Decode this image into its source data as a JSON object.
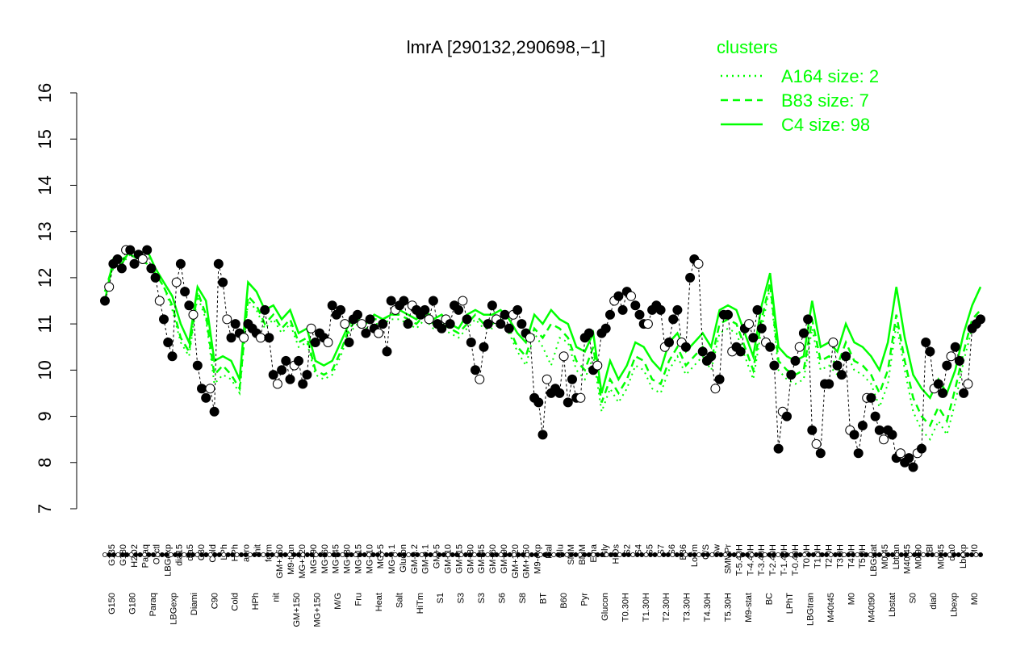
{
  "chart_data": {
    "type": "line",
    "title": "lmrA [290132,290698,−1]",
    "xlabel": "",
    "ylabel": "",
    "ylim": [
      7,
      16
    ],
    "yticks": [
      7,
      8,
      9,
      10,
      11,
      12,
      13,
      14,
      15,
      16
    ],
    "grid": false,
    "legend": {
      "title": "clusters",
      "position": "top-right",
      "entries": [
        {
          "label": "A164 size: 2",
          "style": "dotted"
        },
        {
          "label": "B83 size: 7",
          "style": "dashed"
        },
        {
          "label": "C4 size: 98",
          "style": "solid"
        }
      ]
    },
    "x_labels_top": [
      "G135",
      "G180",
      "H2O2",
      "Paraq",
      "Oxctl",
      "LBGexp",
      "dia15",
      "dia5",
      "C30",
      "Cold",
      "LPh",
      "HPh",
      "aero",
      "nit",
      "ferm",
      "GM+150",
      "M9-tran",
      "MG+120",
      "MG+90",
      "MG+60",
      "MG+45",
      "MG+30",
      "MG+15",
      "MG+10",
      "MG+5",
      "MG-0.1",
      "Glucon",
      "GM-0.2",
      "GM-0.1",
      "GM+5",
      "GM+10",
      "GM+15",
      "GM+30",
      "GM+45",
      "GM+60",
      "GM+90",
      "GM+120",
      "GM+150",
      "M9-exp",
      "Mal",
      "Glu",
      "SMM",
      "BMM",
      "Etha",
      "Gly",
      "HiOs",
      "S2",
      "S4",
      "S5",
      "S7",
      "S6",
      "B36",
      "LoTm",
      "G/S",
      "Sw",
      "SMMPr",
      "T-5.40H",
      "T-4.40H",
      "T-3.40H",
      "T-2.40H",
      "T-1.40H",
      "T-0.40H",
      "T0.0H",
      "T1.0H",
      "T2.0H",
      "T3.0H",
      "T4.0H",
      "T5.0H",
      "LBGstat",
      "M0t45",
      "Lbtran",
      "M40t45",
      "M0t90",
      "Bl",
      "M0t45",
      "dia0",
      "Lbexp",
      "M0"
    ],
    "x_labels_bottom": [
      "G150",
      "G180",
      "Paraq",
      "LBGexp",
      "Diami",
      "C90",
      "Cold",
      "HPh",
      "nit",
      "GM+150",
      "MG+150",
      "M/G",
      "Fru",
      "Heat",
      "Salt",
      "HiTm",
      "S1",
      "S3",
      "S3",
      "S6",
      "S8",
      "BT",
      "B60",
      "Pyr",
      "Glucon",
      "T0.30H",
      "T1.30H",
      "T2.30H",
      "T3.30H",
      "T4.30H",
      "T5.30H",
      "M9-stat",
      "BC",
      "LPhT",
      "LBGtran",
      "M40t45",
      "M0",
      "M40t90",
      "Lbstat",
      "S0",
      "dia0",
      "Lbexp",
      "M0"
    ],
    "series": [
      {
        "name": "C4 size: 98",
        "color": "#00ff00",
        "style": "solid",
        "values": [
          11.5,
          12.4,
          12.3,
          12.6,
          12.5,
          12.6,
          12.2,
          11.9,
          11.6,
          11.0,
          10.6,
          11.8,
          11.5,
          10.2,
          10.3,
          10.2,
          9.8,
          11.9,
          11.7,
          11.3,
          11.4,
          11.1,
          11.3,
          10.8,
          10.9,
          10.2,
          10.1,
          10.2,
          10.6,
          11.0,
          11.1,
          11.0,
          11.2,
          11.1,
          11.2,
          11.3,
          11.2,
          11.1,
          11.3,
          11.1,
          11.2,
          11.0,
          10.9,
          11.2,
          11.3,
          11.2,
          11.2,
          11.3,
          11.1,
          10.8,
          10.6,
          11.2,
          11.0,
          11.3,
          11.1,
          11.0,
          10.5,
          10.4,
          10.8,
          9.5,
          10.2,
          9.8,
          10.1,
          10.6,
          10.5,
          10.2,
          10.0,
          10.6,
          10.8,
          10.4,
          10.6,
          10.8,
          10.5,
          11.3,
          11.4,
          11.3,
          10.8,
          10.3,
          11.4,
          12.1,
          10.5,
          10.3,
          10.2,
          10.3,
          11.5,
          10.5,
          10.6,
          10.4,
          11.0,
          10.6,
          10.5,
          10.3,
          10.0,
          10.6,
          11.8,
          10.7,
          9.9,
          9.6,
          9.4,
          9.8,
          9.5,
          10.0,
          10.8,
          11.4,
          11.8
        ]
      },
      {
        "name": "B83 size: 7",
        "color": "#00ff00",
        "style": "dashed",
        "values": [
          11.7,
          12.3,
          12.4,
          12.5,
          12.4,
          12.3,
          12.1,
          11.8,
          11.4,
          10.7,
          10.4,
          11.7,
          11.2,
          9.9,
          10.1,
          9.9,
          9.6,
          11.6,
          11.4,
          11.0,
          11.2,
          10.9,
          11.1,
          10.6,
          10.7,
          10.0,
          9.9,
          10.0,
          10.4,
          10.9,
          11.1,
          11.0,
          11.1,
          11.1,
          11.2,
          11.2,
          11.1,
          11.0,
          11.2,
          11.0,
          11.0,
          10.9,
          10.8,
          11.0,
          11.2,
          11.0,
          11.0,
          11.1,
          10.9,
          10.5,
          10.3,
          10.9,
          10.7,
          11.0,
          10.9,
          10.7,
          10.2,
          10.0,
          10.5,
          9.3,
          9.8,
          9.5,
          9.8,
          10.3,
          10.2,
          9.8,
          9.7,
          10.2,
          10.5,
          10.1,
          10.3,
          10.5,
          10.2,
          11.0,
          11.1,
          11.0,
          10.5,
          10.0,
          11.1,
          11.9,
          10.2,
          10.0,
          9.9,
          10.0,
          11.1,
          10.2,
          10.3,
          10.1,
          10.6,
          10.2,
          10.1,
          9.9,
          9.5,
          10.0,
          11.2,
          10.2,
          9.4,
          9.0,
          8.8,
          9.2,
          8.9,
          9.6,
          10.4,
          11.1,
          11.3
        ]
      },
      {
        "name": "A164 size: 2",
        "color": "#00ff00",
        "style": "dotted",
        "values": [
          11.7,
          12.2,
          12.3,
          12.5,
          12.4,
          12.3,
          12.1,
          11.8,
          11.3,
          10.6,
          10.3,
          11.6,
          11.1,
          9.7,
          9.9,
          9.8,
          9.5,
          11.5,
          11.3,
          10.9,
          11.1,
          10.8,
          11.0,
          10.5,
          10.6,
          9.9,
          9.8,
          9.9,
          10.3,
          10.8,
          11.0,
          10.9,
          11.0,
          11.0,
          11.1,
          11.1,
          11.0,
          10.9,
          11.1,
          10.9,
          10.9,
          10.8,
          10.7,
          10.9,
          11.1,
          10.9,
          10.9,
          11.0,
          10.8,
          10.4,
          10.1,
          10.8,
          10.5,
          10.1,
          10.7,
          10.6,
          10.0,
          9.8,
          10.3,
          9.1,
          9.6,
          9.3,
          9.6,
          10.1,
          10.0,
          9.6,
          9.5,
          10.0,
          10.3,
          9.9,
          10.1,
          10.3,
          10.0,
          10.8,
          10.9,
          10.8,
          10.3,
          9.8,
          10.9,
          11.8,
          10.0,
          9.8,
          9.7,
          9.8,
          10.9,
          10.0,
          10.1,
          9.9,
          10.4,
          10.0,
          9.9,
          9.7,
          9.2,
          9.7,
          11.0,
          10.0,
          9.1,
          8.7,
          8.5,
          8.9,
          8.6,
          9.3,
          10.2,
          10.9,
          11.1
        ]
      },
      {
        "name": "",
        "color": "#000000",
        "style": "points",
        "values": [
          11.5,
          11.8,
          12.3,
          12.4,
          12.2,
          12.6,
          12.6,
          12.3,
          12.5,
          12.4,
          12.6,
          12.2,
          12.0,
          11.5,
          11.1,
          10.6,
          10.3,
          11.9,
          12.3,
          11.7,
          11.4,
          11.2,
          10.1,
          9.6,
          9.4,
          9.6,
          9.1,
          12.3,
          11.9,
          11.1,
          10.7,
          11.0,
          10.8,
          10.7,
          11.0,
          10.9,
          10.8,
          10.7,
          11.3,
          10.7,
          9.9,
          9.7,
          10.0,
          10.2,
          9.8,
          10.1,
          10.2,
          9.7,
          9.9,
          10.9,
          10.6,
          10.8,
          10.7,
          10.6,
          11.4,
          11.2,
          11.3,
          11.0,
          10.6,
          11.1,
          11.2,
          11.0,
          10.8,
          11.1,
          10.9,
          10.8,
          11.0,
          10.4,
          11.5,
          11.3,
          11.4,
          11.5,
          11.0,
          11.4,
          11.3,
          11.2,
          11.3,
          11.1,
          11.5,
          11.0,
          10.9,
          11.1,
          11.0,
          11.4,
          11.3,
          11.5,
          11.1,
          10.6,
          10.0,
          9.8,
          10.5,
          11.0,
          11.4,
          11.1,
          11.0,
          11.2,
          10.9,
          11.2,
          11.3,
          11.0,
          10.8,
          10.7,
          9.4,
          9.3,
          8.6,
          9.8,
          9.5,
          9.6,
          9.5,
          10.3,
          9.3,
          9.8,
          9.4,
          9.4,
          10.7,
          10.8,
          10.0,
          10.1,
          10.8,
          10.9,
          11.2,
          11.5,
          11.6,
          11.3,
          11.7,
          11.6,
          11.4,
          11.2,
          11.0,
          11.0,
          11.3,
          11.4,
          11.3,
          10.5,
          10.6,
          11.1,
          11.3,
          10.6,
          10.5,
          12.0,
          12.4,
          12.3,
          10.4,
          10.2,
          10.3,
          9.6,
          9.8,
          11.2,
          11.2,
          10.4,
          10.5,
          10.4,
          10.9,
          11.0,
          10.7,
          11.3,
          10.9,
          10.6,
          10.5,
          10.1,
          8.3,
          9.1,
          9.0,
          9.9,
          10.2,
          10.5,
          10.8,
          11.1,
          8.7,
          8.4,
          8.2,
          9.7,
          9.7,
          10.6,
          10.1,
          9.9,
          10.3,
          8.7,
          8.6,
          8.2,
          8.8,
          9.4,
          9.4,
          9.0,
          8.7,
          8.5,
          8.7,
          8.6,
          8.1,
          8.2,
          8.0,
          8.1,
          7.9,
          8.2,
          8.3,
          10.6,
          10.4,
          9.6,
          9.7,
          9.5,
          10.1,
          10.3,
          10.5,
          10.2,
          9.5,
          9.7,
          10.9,
          11.0,
          11.1
        ]
      }
    ]
  }
}
